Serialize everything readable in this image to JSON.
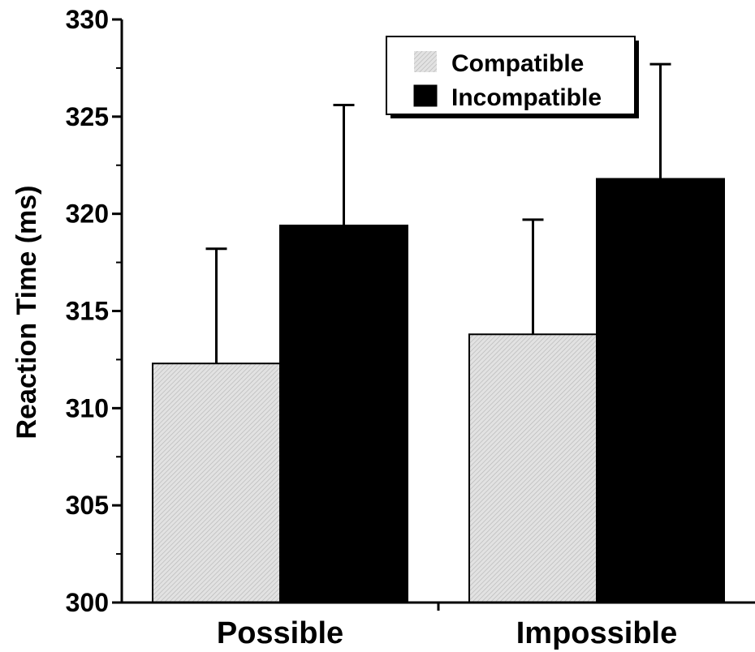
{
  "chart_data": {
    "type": "bar",
    "title": "",
    "xlabel": "",
    "ylabel": "Reaction Time (ms)",
    "ylim": [
      300,
      330
    ],
    "yticks": [
      300,
      305,
      310,
      315,
      320,
      325,
      330
    ],
    "categories": [
      "Possible",
      "Impossible"
    ],
    "series": [
      {
        "name": "Compatible",
        "values": [
          312.3,
          313.8
        ],
        "error_upper": [
          5.9,
          5.9
        ],
        "color": "#d8d8d8",
        "pattern": "diagonal-hatch"
      },
      {
        "name": "Incompatible",
        "values": [
          319.4,
          321.8
        ],
        "error_upper": [
          6.2,
          5.9
        ],
        "color": "#000000"
      }
    ],
    "legend_position": "top-right",
    "grid": false,
    "error_bars": "upper-only"
  }
}
